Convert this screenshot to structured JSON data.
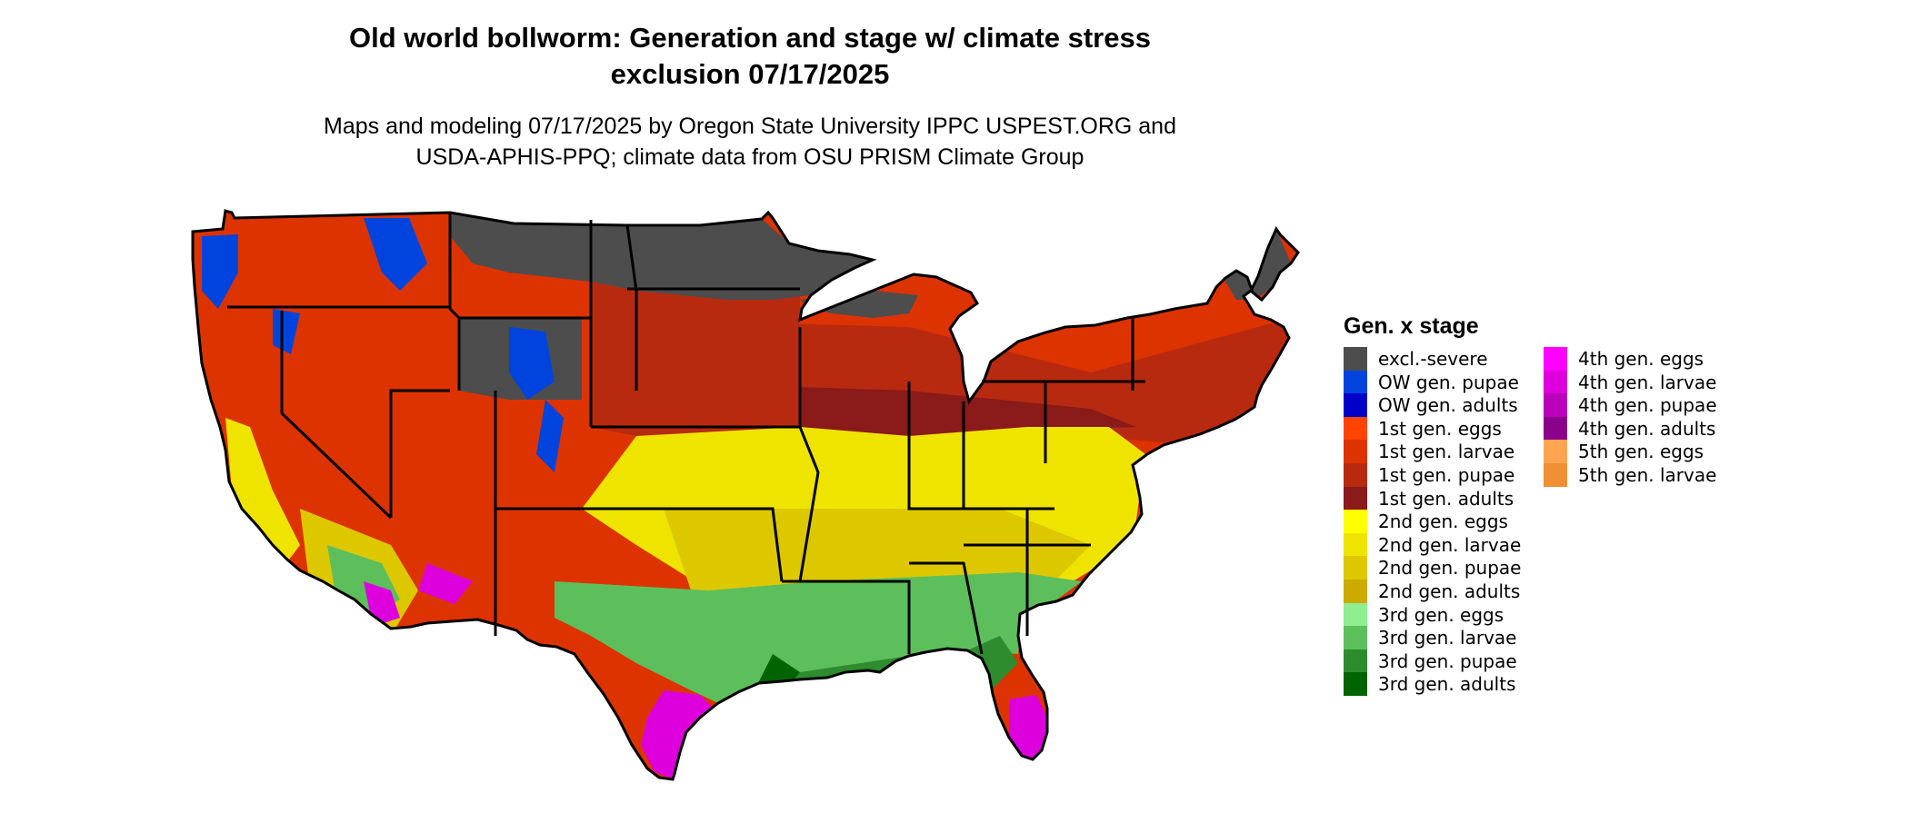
{
  "title_line1": "Old world bollworm: Generation and stage w/ climate stress",
  "title_line2": "exclusion 07/17/2025",
  "subtitle_line1": "Maps and modeling 07/17/2025 by Oregon State University IPPC USPEST.ORG and",
  "subtitle_line2": "USDA-APHIS-PPQ; climate data from OSU PRISM Climate Group",
  "legend": {
    "title": "Gen. x stage",
    "col1": [
      {
        "label": "excl.-severe",
        "color": "#4d4d4d"
      },
      {
        "label": "OW gen. pupae",
        "color": "#0044dd"
      },
      {
        "label": "OW gen. adults",
        "color": "#0000c8"
      },
      {
        "label": "1st gen. eggs",
        "color": "#ff4400"
      },
      {
        "label": "1st gen. larvae",
        "color": "#dd3300"
      },
      {
        "label": "1st gen. pupae",
        "color": "#b82a10"
      },
      {
        "label": "1st gen. adults",
        "color": "#8b1a1a"
      },
      {
        "label": "2nd gen. eggs",
        "color": "#ffff00"
      },
      {
        "label": "2nd gen. larvae",
        "color": "#eee400"
      },
      {
        "label": "2nd gen. pupae",
        "color": "#ddc800"
      },
      {
        "label": "2nd gen. adults",
        "color": "#ccaa00"
      },
      {
        "label": "3rd gen. eggs",
        "color": "#90ee90"
      },
      {
        "label": "3rd gen. larvae",
        "color": "#5cbf5c"
      },
      {
        "label": "3rd gen. pupae",
        "color": "#2e8b2e"
      },
      {
        "label": "3rd gen. adults",
        "color": "#006400"
      }
    ],
    "col2": [
      {
        "label": "4th gen. eggs",
        "color": "#ff00ff"
      },
      {
        "label": "4th gen. larvae",
        "color": "#dd00dd"
      },
      {
        "label": "4th gen. pupae",
        "color": "#bb00bb"
      },
      {
        "label": "4th gen. adults",
        "color": "#8b008b"
      },
      {
        "label": "5th gen. eggs",
        "color": "#ffa552"
      },
      {
        "label": "5th gen. larvae",
        "color": "#ee9033"
      }
    ]
  }
}
